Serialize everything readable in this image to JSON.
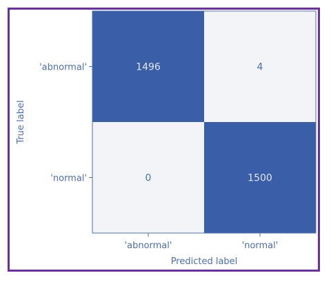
{
  "chart_data": {
    "type": "heatmap",
    "title": "",
    "xlabel": "Predicted label",
    "ylabel": "True label",
    "x_categories": [
      "'abnormal'",
      "'normal'"
    ],
    "y_categories": [
      "'abnormal'",
      "'normal'"
    ],
    "values": [
      [
        1496,
        4
      ],
      [
        0,
        1500
      ]
    ],
    "colors": {
      "low": "#f2f4f8",
      "high": "#3a5fa8",
      "text_on_low": "#4a6fb5",
      "text_on_high": "#dfe7f5",
      "axis": "#4a6fb5",
      "frame": "#6a2ea8"
    }
  }
}
